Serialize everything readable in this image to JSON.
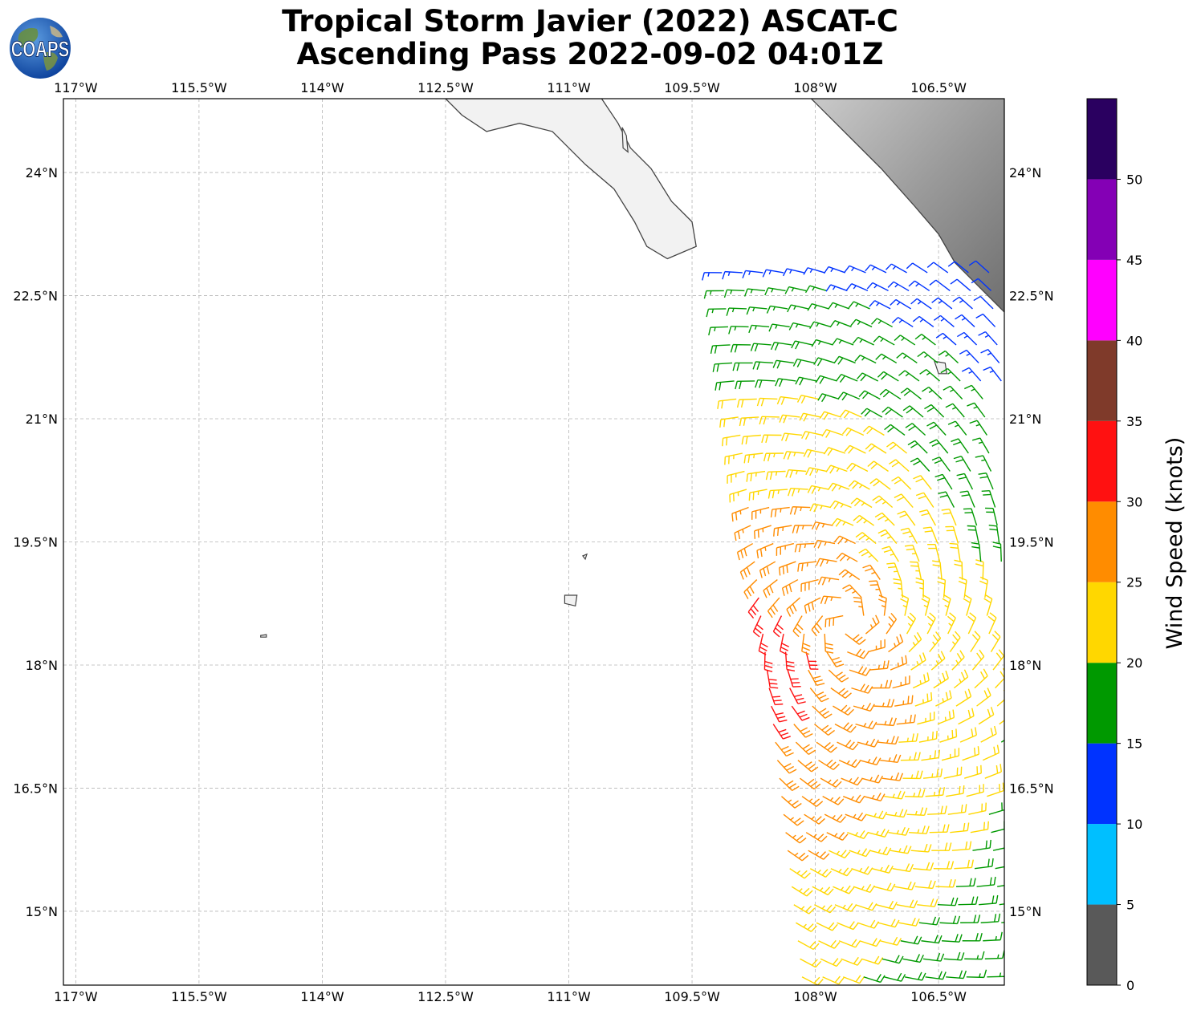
{
  "header": {
    "title_line1": "Tropical Storm Javier (2022) ASCAT-C",
    "title_line2": "Ascending Pass 2022-09-02 04:01Z",
    "logo_text": "COAPS",
    "logo_icon": "globe-icon"
  },
  "map": {
    "lon_range": [
      -117.15,
      -105.7
    ],
    "lat_range": [
      14.1,
      24.9
    ],
    "gridlines": true,
    "lon_ticks": [
      {
        "value": -117.0,
        "label": "117°W"
      },
      {
        "value": -115.5,
        "label": "115.5°W"
      },
      {
        "value": -114.0,
        "label": "114°W"
      },
      {
        "value": -112.5,
        "label": "112.5°W"
      },
      {
        "value": -111.0,
        "label": "111°W"
      },
      {
        "value": -109.5,
        "label": "109.5°W"
      },
      {
        "value": -108.0,
        "label": "108°W"
      },
      {
        "value": -106.5,
        "label": "106.5°W"
      }
    ],
    "lat_ticks": [
      {
        "value": 24.0,
        "label": "24°N"
      },
      {
        "value": 22.5,
        "label": "22.5°N"
      },
      {
        "value": 21.0,
        "label": "21°N"
      },
      {
        "value": 19.5,
        "label": "19.5°N"
      },
      {
        "value": 18.0,
        "label": "18°N"
      },
      {
        "value": 16.5,
        "label": "16.5°N"
      },
      {
        "value": 15.0,
        "label": "15°N"
      }
    ],
    "coastline_color": "#444444",
    "terrain_color": "#9a9a9a",
    "baja_coast": [
      [
        -112.5,
        24.9
      ],
      [
        -112.3,
        24.7
      ],
      [
        -112.0,
        24.5
      ],
      [
        -111.6,
        24.6
      ],
      [
        -111.2,
        24.5
      ],
      [
        -110.8,
        24.1
      ],
      [
        -110.45,
        23.8
      ],
      [
        -110.2,
        23.4
      ],
      [
        -110.05,
        23.1
      ],
      [
        -109.8,
        22.95
      ],
      [
        -109.45,
        23.1
      ],
      [
        -109.5,
        23.4
      ],
      [
        -109.75,
        23.65
      ],
      [
        -110.0,
        24.05
      ],
      [
        -110.25,
        24.3
      ],
      [
        -110.4,
        24.6
      ],
      [
        -110.6,
        24.9
      ]
    ],
    "mainland_coast": [
      [
        -108.05,
        24.9
      ],
      [
        -107.6,
        24.45
      ],
      [
        -107.2,
        24.05
      ],
      [
        -106.8,
        23.6
      ],
      [
        -106.5,
        23.25
      ],
      [
        -106.3,
        22.9
      ],
      [
        -106.0,
        22.6
      ],
      [
        -105.75,
        22.35
      ],
      [
        -105.7,
        22.3
      ]
    ],
    "islands": [
      {
        "name": "socorro",
        "points": [
          [
            -111.05,
            18.85
          ],
          [
            -110.9,
            18.85
          ],
          [
            -110.92,
            18.72
          ],
          [
            -111.05,
            18.75
          ]
        ]
      },
      {
        "name": "san-benedicto",
        "points": [
          [
            -110.83,
            19.33
          ],
          [
            -110.78,
            19.35
          ],
          [
            -110.8,
            19.29
          ]
        ]
      },
      {
        "name": "clarion",
        "points": [
          [
            -114.75,
            18.36
          ],
          [
            -114.68,
            18.37
          ],
          [
            -114.68,
            18.34
          ],
          [
            -114.75,
            18.34
          ]
        ]
      },
      {
        "name": "isla-espiritu-santo",
        "points": [
          [
            -110.35,
            24.55
          ],
          [
            -110.3,
            24.45
          ],
          [
            -110.28,
            24.25
          ],
          [
            -110.34,
            24.3
          ]
        ]
      },
      {
        "name": "islas-marias",
        "points": [
          [
            -106.55,
            21.7
          ],
          [
            -106.42,
            21.68
          ],
          [
            -106.4,
            21.55
          ],
          [
            -106.5,
            21.55
          ]
        ]
      }
    ]
  },
  "swath": {
    "corners": [
      [
        -109.2,
        22.9
      ],
      [
        -105.7,
        22.9
      ],
      [
        -105.7,
        14.1
      ],
      [
        -108.2,
        14.1
      ]
    ],
    "wind": {
      "vortex_lon": -107.6,
      "vortex_lat": 18.5,
      "peak_lon": -108.8,
      "peak_lat": 18.1
    }
  },
  "colorbar": {
    "label": "Wind Speed (knots)",
    "range": [
      0,
      55
    ],
    "ticks": [
      {
        "value": 0,
        "label": "0"
      },
      {
        "value": 5,
        "label": "5"
      },
      {
        "value": 10,
        "label": "10"
      },
      {
        "value": 15,
        "label": "15"
      },
      {
        "value": 20,
        "label": "20"
      },
      {
        "value": 25,
        "label": "25"
      },
      {
        "value": 30,
        "label": "30"
      },
      {
        "value": 35,
        "label": "35"
      },
      {
        "value": 40,
        "label": "40"
      },
      {
        "value": 45,
        "label": "45"
      },
      {
        "value": 50,
        "label": "50"
      }
    ],
    "bins": [
      {
        "min": 0,
        "max": 5,
        "color": "#595959"
      },
      {
        "min": 5,
        "max": 10,
        "color": "#00bfff"
      },
      {
        "min": 10,
        "max": 15,
        "color": "#0033ff"
      },
      {
        "min": 15,
        "max": 20,
        "color": "#009900"
      },
      {
        "min": 20,
        "max": 25,
        "color": "#ffd700"
      },
      {
        "min": 25,
        "max": 30,
        "color": "#ff8c00"
      },
      {
        "min": 30,
        "max": 35,
        "color": "#ff1111"
      },
      {
        "min": 35,
        "max": 40,
        "color": "#7f3a2a"
      },
      {
        "min": 40,
        "max": 45,
        "color": "#ff00ff"
      },
      {
        "min": 45,
        "max": 50,
        "color": "#8400b5"
      },
      {
        "min": 50,
        "max": 55,
        "color": "#2a0060"
      }
    ]
  }
}
